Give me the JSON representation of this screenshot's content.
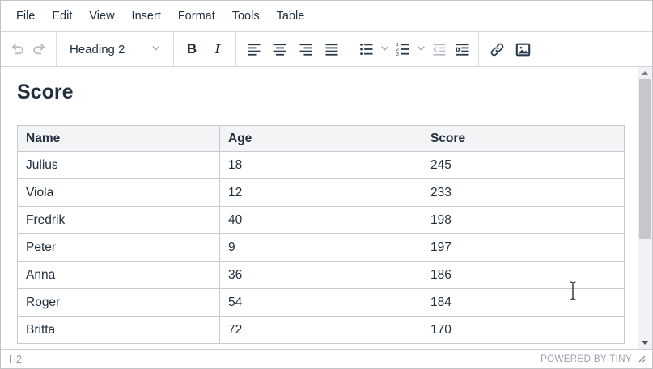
{
  "menubar": {
    "items": [
      "File",
      "Edit",
      "View",
      "Insert",
      "Format",
      "Tools",
      "Table"
    ]
  },
  "toolbar": {
    "format_select": {
      "value": "Heading 2"
    },
    "bold_label": "B",
    "italic_label": "I",
    "buttons": [
      "undo",
      "redo",
      "bold",
      "italic",
      "align-left",
      "align-center",
      "align-right",
      "align-justify",
      "bullet-list",
      "numbered-list",
      "outdent",
      "indent",
      "link",
      "image"
    ],
    "disabled_buttons": [
      "undo",
      "redo",
      "outdent"
    ]
  },
  "content": {
    "heading": "Score",
    "table": {
      "columns": [
        "Name",
        "Age",
        "Score"
      ],
      "rows": [
        [
          "Julius",
          "18",
          "245"
        ],
        [
          "Viola",
          "12",
          "233"
        ],
        [
          "Fredrik",
          "40",
          "198"
        ],
        [
          "Peter",
          "9",
          "197"
        ],
        [
          "Anna",
          "36",
          "186"
        ],
        [
          "Roger",
          "54",
          "184"
        ],
        [
          "Britta",
          "72",
          "170"
        ]
      ]
    }
  },
  "statusbar": {
    "element_path": "H2",
    "branding": "POWERED BY TINY"
  },
  "colors": {
    "icon": "#2d3b4e",
    "icon_disabled": "#b8bdc4",
    "text": "#222f3e",
    "border": "#d3d6d9",
    "table_border": "#c8cbce",
    "table_header_bg": "#f3f4f5",
    "statusbar_text": "#9aa1ab",
    "scrollbar_thumb": "#c5c7c9",
    "scrollbar_track": "#f0f1f2"
  }
}
